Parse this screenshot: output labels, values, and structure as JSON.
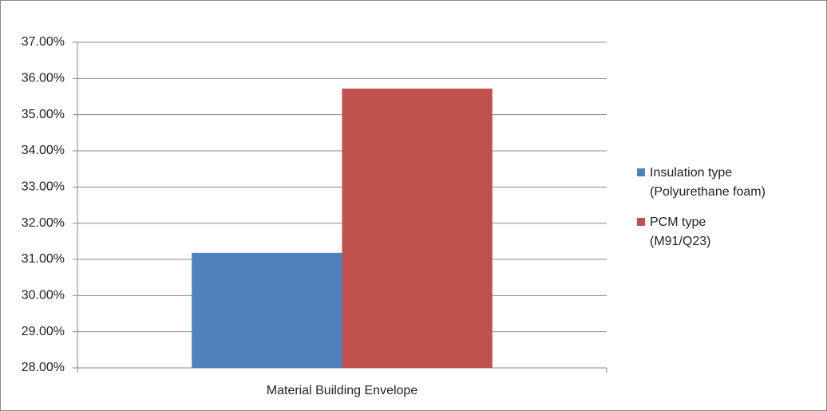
{
  "chart_data": {
    "type": "bar",
    "categories": [
      "Material Building Envelope"
    ],
    "series": [
      {
        "name": "Insulation type (Polyurethane foam)",
        "color": "#4f81bd",
        "values": [
          31.18
        ]
      },
      {
        "name": "PCM type (M91/Q23)",
        "color": "#c0504d",
        "values": [
          35.72
        ]
      }
    ],
    "ylim": [
      28,
      37
    ],
    "yticks": [
      {
        "value": 28,
        "label": "28.00%"
      },
      {
        "value": 29,
        "label": "29.00%"
      },
      {
        "value": 30,
        "label": "30.00%"
      },
      {
        "value": 31,
        "label": "31.00%"
      },
      {
        "value": 32,
        "label": "32.00%"
      },
      {
        "value": 33,
        "label": "33.00%"
      },
      {
        "value": 34,
        "label": "34.00%"
      },
      {
        "value": 35,
        "label": "35.00%"
      },
      {
        "value": 36,
        "label": "36.00%"
      },
      {
        "value": 37,
        "label": "37.00%"
      }
    ],
    "grid": true,
    "legend": "right"
  }
}
